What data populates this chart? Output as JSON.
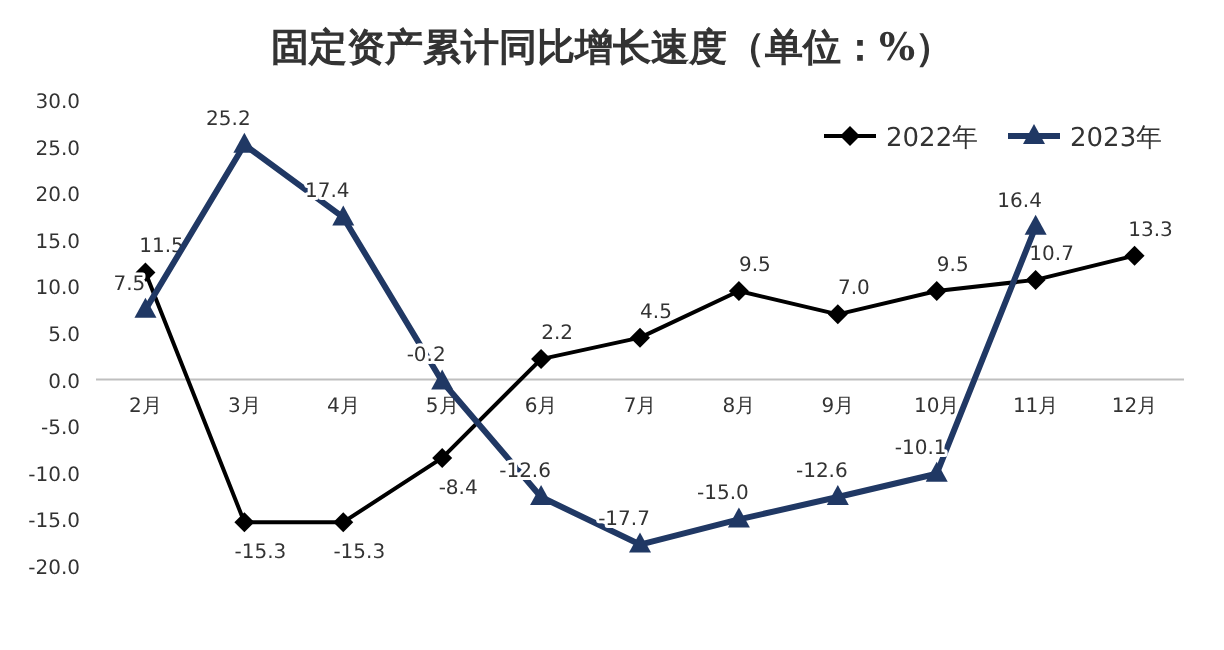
{
  "chart_data": {
    "type": "line",
    "title": "固定资产累计同比增长速度（单位：%）",
    "categories": [
      "2月",
      "3月",
      "4月",
      "5月",
      "6月",
      "7月",
      "8月",
      "9月",
      "10月",
      "11月",
      "12月"
    ],
    "series": [
      {
        "name": "2022年",
        "color": "#000000",
        "marker": "diamond",
        "values": [
          11.5,
          -15.3,
          -15.3,
          -8.4,
          2.2,
          4.5,
          9.5,
          7.0,
          9.5,
          10.7,
          13.3
        ],
        "value_labels": [
          "11.5",
          "-15.3",
          "-15.3",
          "-8.4",
          "2.2",
          "4.5",
          "9.5",
          "7.0",
          "9.5",
          "10.7",
          "13.3"
        ]
      },
      {
        "name": "2023年",
        "color": "#203864",
        "marker": "triangle",
        "values": [
          7.5,
          25.2,
          17.4,
          -0.2,
          -12.6,
          -17.7,
          -15.0,
          -12.6,
          -10.1,
          16.4,
          null
        ],
        "value_labels": [
          "7.5",
          "25.2",
          "17.4",
          "-0.2",
          "-12.6",
          "-17.7",
          "-15.0",
          "-12.6",
          "-10.1",
          "16.4",
          null
        ]
      }
    ],
    "ylim": [
      -20,
      30
    ],
    "yticks": [
      {
        "value": -20,
        "label": "-20.0"
      },
      {
        "value": -15,
        "label": "-15.0"
      },
      {
        "value": -10,
        "label": "-10.0"
      },
      {
        "value": -5,
        "label": "-5.0"
      },
      {
        "value": 0,
        "label": "0.0"
      },
      {
        "value": 5,
        "label": "5.0"
      },
      {
        "value": 10,
        "label": "10.0"
      },
      {
        "value": 15,
        "label": "15.0"
      },
      {
        "value": 20,
        "label": "20.0"
      },
      {
        "value": 25,
        "label": "25.0"
      },
      {
        "value": 30,
        "label": "30.0"
      }
    ],
    "grid": false,
    "legend": "top right",
    "line_style": "solid"
  }
}
